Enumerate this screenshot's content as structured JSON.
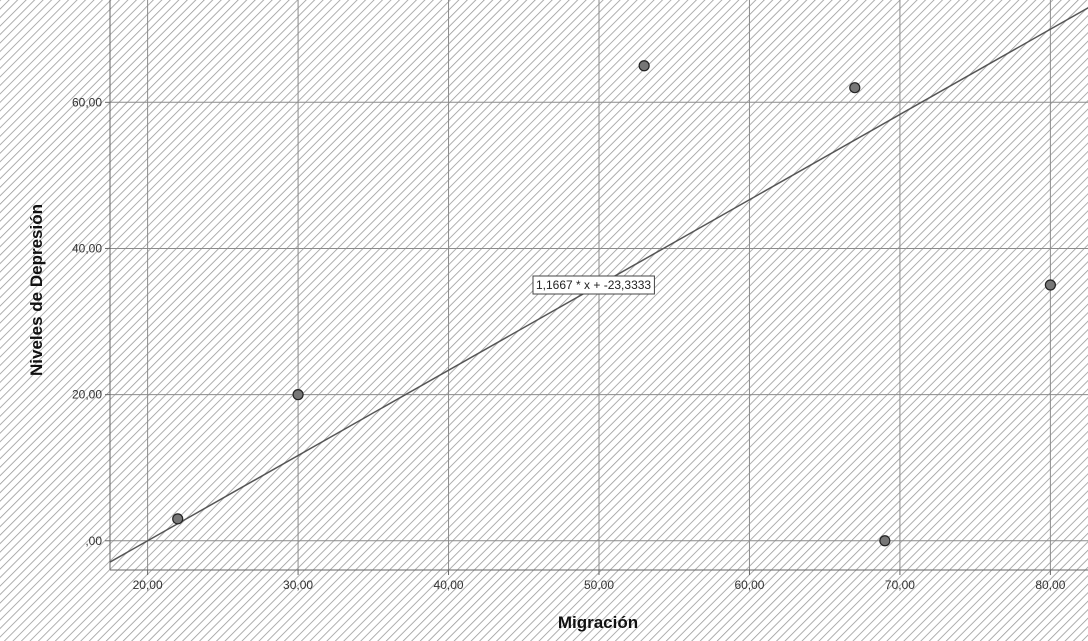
{
  "chart_data": {
    "type": "scatter",
    "xlabel": "Migración",
    "ylabel": "Niveles de Depresión",
    "xlim": [
      17.5,
      82.5
    ],
    "ylim": [
      -4,
      74
    ],
    "x_ticks": [
      20,
      30,
      40,
      50,
      60,
      70,
      80
    ],
    "x_tick_labels": [
      "20,00",
      "30,00",
      "40,00",
      "50,00",
      "60,00",
      "70,00",
      "80,00"
    ],
    "y_ticks": [
      0,
      20,
      40,
      60
    ],
    "y_tick_labels": [
      ",00",
      "20,00",
      "40,00",
      "60,00"
    ],
    "grid": true,
    "points": [
      {
        "x": 22,
        "y": 3
      },
      {
        "x": 30,
        "y": 20
      },
      {
        "x": 53,
        "y": 65
      },
      {
        "x": 67,
        "y": 62
      },
      {
        "x": 69,
        "y": 0
      },
      {
        "x": 80,
        "y": 35
      }
    ],
    "fit_line": {
      "slope": 1.1667,
      "intercept": -23.3333
    },
    "annotation": "1,1667 * x + -23,3333",
    "colors": {
      "background": "#ffffff",
      "hatch": "#9a9a9a",
      "grid": "#8c8c8c",
      "line": "#555555",
      "point": "#777777"
    }
  }
}
